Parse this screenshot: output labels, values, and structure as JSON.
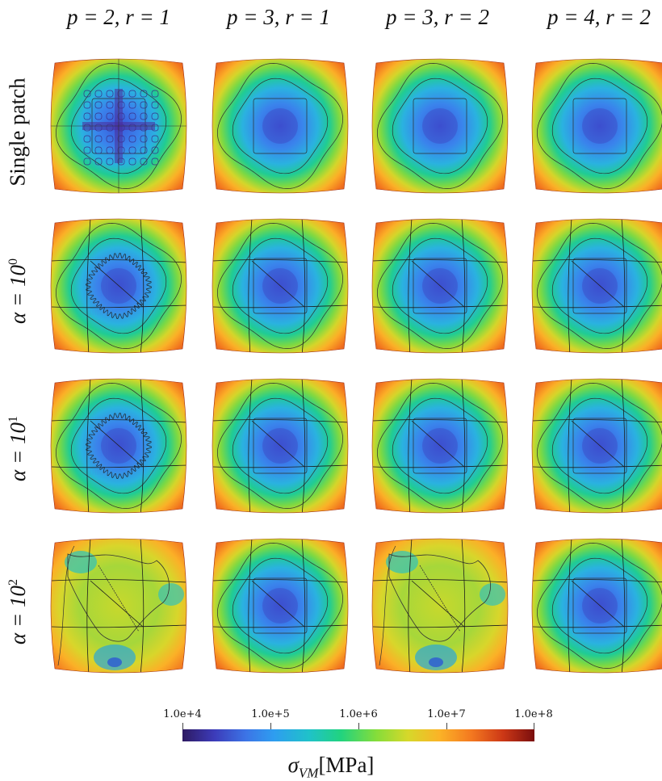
{
  "columns": [
    {
      "label": "p = 2, r = 1"
    },
    {
      "label": "p = 3, r = 1"
    },
    {
      "label": "p = 3, r = 2"
    },
    {
      "label": "p = 4, r = 2"
    }
  ],
  "rows": [
    {
      "label": "Single patch",
      "base": "",
      "exp": ""
    },
    {
      "label": "",
      "base": "α = 10",
      "exp": "0"
    },
    {
      "label": "",
      "base": "α = 10",
      "exp": "1"
    },
    {
      "label": "",
      "base": "α = 10",
      "exp": "2"
    }
  ],
  "panels": [
    {
      "row": 0,
      "col": 0,
      "pattern": "oscillating-checkerboard",
      "patches": "single"
    },
    {
      "row": 0,
      "col": 1,
      "pattern": "smooth",
      "patches": "single"
    },
    {
      "row": 0,
      "col": 2,
      "pattern": "smooth",
      "patches": "single"
    },
    {
      "row": 0,
      "col": 3,
      "pattern": "smooth",
      "patches": "single"
    },
    {
      "row": 1,
      "col": 0,
      "pattern": "wavy-contour",
      "patches": "multi"
    },
    {
      "row": 1,
      "col": 1,
      "pattern": "smooth",
      "patches": "multi"
    },
    {
      "row": 1,
      "col": 2,
      "pattern": "smooth",
      "patches": "multi"
    },
    {
      "row": 1,
      "col": 3,
      "pattern": "smooth",
      "patches": "multi"
    },
    {
      "row": 2,
      "col": 0,
      "pattern": "wavy-contour",
      "patches": "multi"
    },
    {
      "row": 2,
      "col": 1,
      "pattern": "smooth",
      "patches": "multi"
    },
    {
      "row": 2,
      "col": 2,
      "pattern": "smooth",
      "patches": "multi"
    },
    {
      "row": 2,
      "col": 3,
      "pattern": "smooth",
      "patches": "multi"
    },
    {
      "row": 3,
      "col": 0,
      "pattern": "distorted",
      "patches": "multi"
    },
    {
      "row": 3,
      "col": 1,
      "pattern": "smooth",
      "patches": "multi"
    },
    {
      "row": 3,
      "col": 2,
      "pattern": "distorted",
      "patches": "multi"
    },
    {
      "row": 3,
      "col": 3,
      "pattern": "smooth",
      "patches": "multi"
    }
  ],
  "colorbar": {
    "scale": "log",
    "ticks": [
      "1.0e+4",
      "1.0e+5",
      "1.0e+6",
      "1.0e+7",
      "1.0e+8"
    ],
    "label_symbol": "σ",
    "label_sub": "VM",
    "label_unit": "[MPa]",
    "colors": [
      "#2e1a62",
      "#3c74e6",
      "#1fc2c9",
      "#84dd3a",
      "#fbb327",
      "#cd3816",
      "#7a0e0e"
    ]
  }
}
